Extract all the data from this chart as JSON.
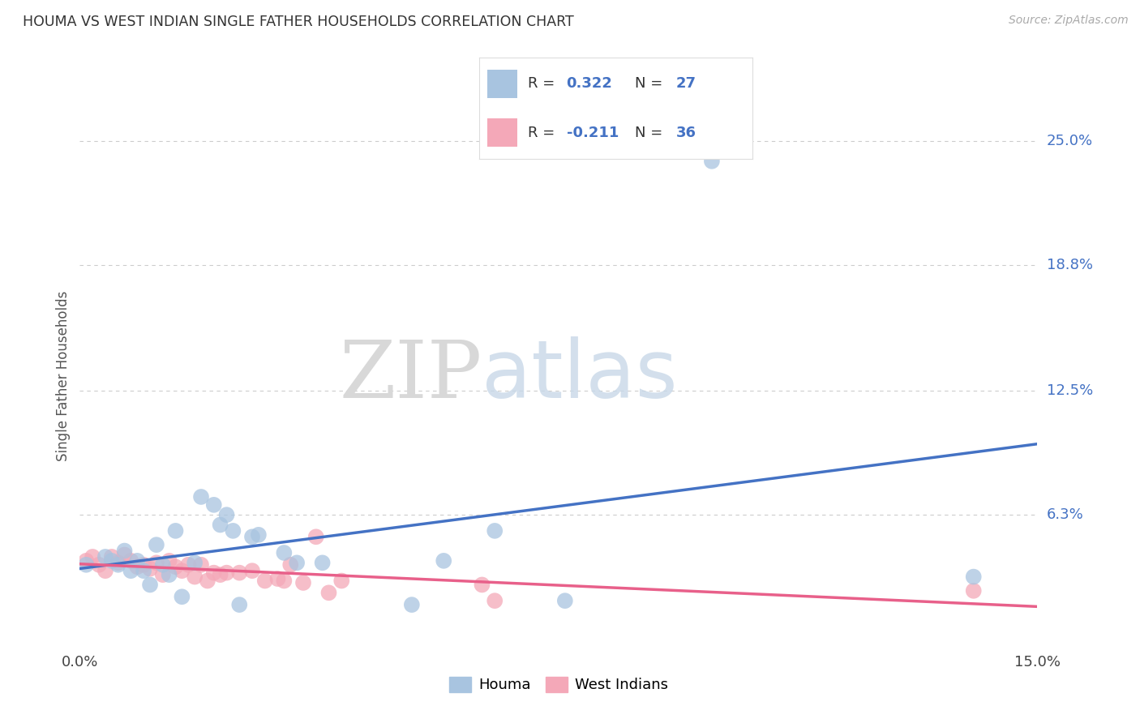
{
  "title": "HOUMA VS WEST INDIAN SINGLE FATHER HOUSEHOLDS CORRELATION CHART",
  "source": "Source: ZipAtlas.com",
  "ylabel_label": "Single Father Households",
  "ytick_labels": [
    "25.0%",
    "18.8%",
    "12.5%",
    "6.3%"
  ],
  "ytick_values": [
    0.25,
    0.188,
    0.125,
    0.063
  ],
  "xlim": [
    0.0,
    0.15
  ],
  "ylim": [
    -0.005,
    0.27
  ],
  "houma_color": "#a8c4e0",
  "west_indian_color": "#f4a8b8",
  "trendline_houma_color": "#4472c4",
  "trendline_west_color": "#e8608a",
  "ytick_color": "#4472c4",
  "legend_r_color": "#333333",
  "legend_val_color": "#4472c4",
  "houma_x": [
    0.001,
    0.004,
    0.005,
    0.006,
    0.007,
    0.008,
    0.009,
    0.01,
    0.011,
    0.012,
    0.013,
    0.014,
    0.015,
    0.016,
    0.018,
    0.019,
    0.021,
    0.022,
    0.023,
    0.024,
    0.025,
    0.027,
    0.028,
    0.032,
    0.034,
    0.038,
    0.052,
    0.057,
    0.065,
    0.076,
    0.099,
    0.14
  ],
  "houma_y": [
    0.038,
    0.042,
    0.04,
    0.038,
    0.045,
    0.035,
    0.04,
    0.035,
    0.028,
    0.048,
    0.038,
    0.033,
    0.055,
    0.022,
    0.039,
    0.072,
    0.068,
    0.058,
    0.063,
    0.055,
    0.018,
    0.052,
    0.053,
    0.044,
    0.039,
    0.039,
    0.018,
    0.04,
    0.055,
    0.02,
    0.24,
    0.032
  ],
  "west_x": [
    0.001,
    0.002,
    0.003,
    0.004,
    0.005,
    0.006,
    0.007,
    0.008,
    0.009,
    0.01,
    0.011,
    0.012,
    0.013,
    0.014,
    0.015,
    0.016,
    0.017,
    0.018,
    0.019,
    0.02,
    0.021,
    0.022,
    0.023,
    0.025,
    0.027,
    0.029,
    0.031,
    0.032,
    0.033,
    0.035,
    0.037,
    0.039,
    0.041,
    0.063,
    0.065,
    0.14
  ],
  "west_y": [
    0.04,
    0.042,
    0.038,
    0.035,
    0.042,
    0.039,
    0.043,
    0.04,
    0.037,
    0.038,
    0.036,
    0.039,
    0.033,
    0.04,
    0.037,
    0.035,
    0.038,
    0.032,
    0.038,
    0.03,
    0.034,
    0.033,
    0.034,
    0.034,
    0.035,
    0.03,
    0.031,
    0.03,
    0.038,
    0.029,
    0.052,
    0.024,
    0.03,
    0.028,
    0.02,
    0.025
  ],
  "background_color": "#ffffff",
  "grid_color": "#cccccc"
}
